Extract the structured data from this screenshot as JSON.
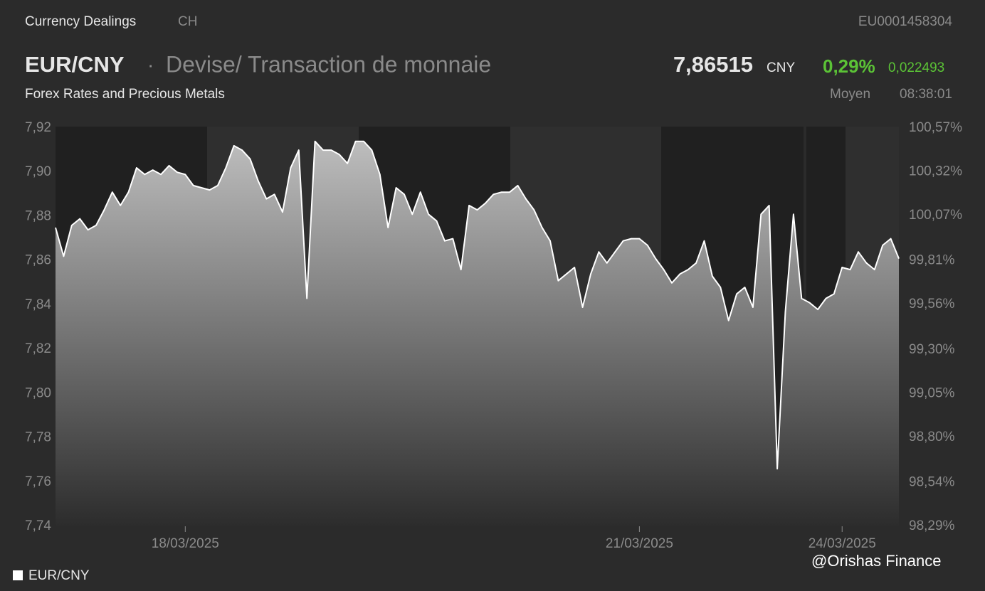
{
  "header": {
    "section": "Currency Dealings",
    "country": "CH",
    "isin": "EU0001458304",
    "symbol": "EUR/CNY",
    "separator": "·",
    "description": "Devise/ Transaction de monnaie",
    "price": "7,86515",
    "currency": "CNY",
    "change_pct": "0,29%",
    "change_abs": "0,022493",
    "subtitle": "Forex Rates and Precious Metals",
    "price_type": "Moyen",
    "time": "08:38:01"
  },
  "watermark": "@Orishas Finance",
  "chart_data": {
    "type": "area",
    "categories": [
      null,
      null,
      null,
      null,
      null,
      null,
      null,
      null,
      null,
      null,
      null,
      null,
      null,
      null,
      null,
      null,
      "18/03/2025",
      null,
      null,
      null,
      null,
      null,
      null,
      null,
      null,
      null,
      null,
      null,
      null,
      null,
      null,
      null,
      null,
      null,
      null,
      null,
      null,
      null,
      null,
      null,
      null,
      null,
      null,
      null,
      null,
      null,
      null,
      null,
      null,
      null,
      null,
      null,
      null,
      null,
      null,
      null,
      null,
      null,
      null,
      null,
      null,
      null,
      null,
      null,
      null,
      null,
      null,
      null,
      null,
      null,
      null,
      null,
      "21/03/2025",
      null,
      null,
      null,
      null,
      null,
      null,
      null,
      null,
      null,
      null,
      null,
      null,
      null,
      null,
      null,
      null,
      null,
      null,
      null,
      null,
      null,
      null,
      null,
      null,
      "24/03/2025",
      null,
      null,
      null,
      null,
      null,
      null,
      null
    ],
    "series": [
      {
        "name": "EUR/CNY",
        "color": "#ffffff",
        "values": [
          7.875,
          7.862,
          7.876,
          7.879,
          7.874,
          7.876,
          7.883,
          7.891,
          7.885,
          7.891,
          7.902,
          7.899,
          7.901,
          7.899,
          7.903,
          7.9,
          7.899,
          7.894,
          7.893,
          7.892,
          7.894,
          7.902,
          7.912,
          7.91,
          7.906,
          7.896,
          7.888,
          7.89,
          7.882,
          7.902,
          7.91,
          7.843,
          7.914,
          7.91,
          7.91,
          7.908,
          7.904,
          7.914,
          7.914,
          7.91,
          7.899,
          7.875,
          7.893,
          7.89,
          7.881,
          7.891,
          7.881,
          7.878,
          7.869,
          7.87,
          7.856,
          7.885,
          7.883,
          7.886,
          7.89,
          7.891,
          7.891,
          7.894,
          7.888,
          7.883,
          7.875,
          7.869,
          7.851,
          7.854,
          7.857,
          7.839,
          7.854,
          7.864,
          7.859,
          7.864,
          7.869,
          7.87,
          7.87,
          7.867,
          7.861,
          7.856,
          7.85,
          7.854,
          7.856,
          7.859,
          7.869,
          7.853,
          7.848,
          7.833,
          7.845,
          7.848,
          7.839,
          7.881,
          7.885,
          7.766,
          7.837,
          7.881,
          7.843,
          7.841,
          7.838,
          7.843,
          7.845,
          7.857,
          7.856,
          7.864,
          7.859,
          7.856,
          7.867,
          7.87,
          7.861
        ]
      }
    ],
    "ylim": [
      7.74,
      7.92
    ],
    "yticks": [
      {
        "value": 7.92,
        "label": "7,92"
      },
      {
        "value": 7.9,
        "label": "7,90"
      },
      {
        "value": 7.88,
        "label": "7,88"
      },
      {
        "value": 7.86,
        "label": "7,86"
      },
      {
        "value": 7.84,
        "label": "7,84"
      },
      {
        "value": 7.82,
        "label": "7,82"
      },
      {
        "value": 7.8,
        "label": "7,80"
      },
      {
        "value": 7.78,
        "label": "7,78"
      },
      {
        "value": 7.76,
        "label": "7,76"
      },
      {
        "value": 7.74,
        "label": "7,74"
      }
    ],
    "y2lim": [
      98.29,
      100.57
    ],
    "y2ticks": [
      {
        "value": 100.57,
        "label": "100,57%"
      },
      {
        "value": 100.32,
        "label": "100,32%"
      },
      {
        "value": 100.07,
        "label": "100,07%"
      },
      {
        "value": 99.81,
        "label": "99,81%"
      },
      {
        "value": 99.56,
        "label": "99,56%"
      },
      {
        "value": 99.3,
        "label": "99,30%"
      },
      {
        "value": 99.05,
        "label": "99,05%"
      },
      {
        "value": 98.8,
        "label": "98,80%"
      },
      {
        "value": 98.54,
        "label": "98,54%"
      },
      {
        "value": 98.29,
        "label": "98,29%"
      }
    ],
    "grid": false
  }
}
